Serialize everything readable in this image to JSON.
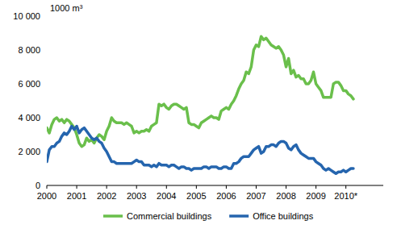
{
  "chart_data": {
    "type": "line",
    "ylabel": "1000 m³",
    "x": [
      2000,
      2000.083,
      2000.167,
      2000.25,
      2000.333,
      2000.417,
      2000.5,
      2000.583,
      2000.667,
      2000.75,
      2000.833,
      2000.917,
      2001,
      2001.083,
      2001.167,
      2001.25,
      2001.333,
      2001.417,
      2001.5,
      2001.583,
      2001.667,
      2001.75,
      2001.833,
      2001.917,
      2002,
      2002.083,
      2002.167,
      2002.25,
      2002.333,
      2002.417,
      2002.5,
      2002.583,
      2002.667,
      2002.75,
      2002.833,
      2002.917,
      2003,
      2003.083,
      2003.167,
      2003.25,
      2003.333,
      2003.417,
      2003.5,
      2003.583,
      2003.667,
      2003.75,
      2003.833,
      2003.917,
      2004,
      2004.083,
      2004.167,
      2004.25,
      2004.333,
      2004.417,
      2004.5,
      2004.583,
      2004.667,
      2004.75,
      2004.833,
      2004.917,
      2005,
      2005.083,
      2005.167,
      2005.25,
      2005.333,
      2005.417,
      2005.5,
      2005.583,
      2005.667,
      2005.75,
      2005.833,
      2005.917,
      2006,
      2006.083,
      2006.167,
      2006.25,
      2006.333,
      2006.417,
      2006.5,
      2006.583,
      2006.667,
      2006.75,
      2006.833,
      2006.917,
      2007,
      2007.083,
      2007.167,
      2007.25,
      2007.333,
      2007.417,
      2007.5,
      2007.583,
      2007.667,
      2007.75,
      2007.833,
      2007.917,
      2008,
      2008.083,
      2008.167,
      2008.25,
      2008.333,
      2008.417,
      2008.5,
      2008.583,
      2008.667,
      2008.75,
      2008.833,
      2008.917,
      2009,
      2009.083,
      2009.167,
      2009.25,
      2009.333,
      2009.417,
      2009.5,
      2009.583,
      2009.667,
      2009.75,
      2009.833,
      2009.917,
      2010,
      2010.083,
      2010.167,
      2010.25
    ],
    "series": [
      {
        "name": "Commercial buildings",
        "color": "#6abf4b",
        "values": [
          3400,
          3100,
          3600,
          3900,
          4000,
          3800,
          3900,
          3700,
          3900,
          3800,
          3600,
          3400,
          3000,
          2500,
          2300,
          2400,
          2800,
          2600,
          2700,
          2500,
          2800,
          3000,
          2900,
          2700,
          3200,
          3500,
          4000,
          3800,
          3700,
          3700,
          3700,
          3600,
          3700,
          3600,
          3500,
          3100,
          3200,
          3100,
          3200,
          3200,
          3300,
          3200,
          3500,
          3600,
          3700,
          4800,
          4700,
          4800,
          4600,
          4500,
          4700,
          4800,
          4800,
          4700,
          4600,
          4500,
          4600,
          3700,
          3600,
          3600,
          3500,
          3400,
          3700,
          3800,
          3900,
          4000,
          4100,
          4000,
          4000,
          3900,
          4400,
          4500,
          4600,
          4500,
          4800,
          5000,
          5300,
          5700,
          6000,
          6200,
          6700,
          6600,
          7000,
          8000,
          8300,
          8200,
          8800,
          8600,
          8700,
          8500,
          8300,
          8200,
          8100,
          8200,
          8000,
          7700,
          7000,
          7500,
          6600,
          6800,
          6400,
          6500,
          6300,
          6300,
          6000,
          6000,
          6200,
          6700,
          6000,
          5800,
          5600,
          5200,
          5200,
          5200,
          5200,
          6000,
          6100,
          6100,
          5900,
          5600,
          5600,
          5400,
          5300,
          5100
        ]
      },
      {
        "name": "Office buildings",
        "color": "#2565ae",
        "values": [
          1400,
          2100,
          2300,
          2300,
          2500,
          2600,
          2900,
          3100,
          3000,
          3200,
          3500,
          3300,
          3500,
          3100,
          3300,
          3400,
          3200,
          3000,
          2800,
          2700,
          2800,
          2600,
          2500,
          2200,
          2000,
          1700,
          1400,
          1400,
          1300,
          1300,
          1300,
          1300,
          1300,
          1300,
          1300,
          1400,
          1500,
          1400,
          1400,
          1200,
          1200,
          1200,
          1100,
          1200,
          1100,
          1300,
          1200,
          1200,
          1200,
          1100,
          1200,
          1200,
          1100,
          1000,
          1100,
          1100,
          1000,
          1000,
          900,
          1000,
          1000,
          1000,
          1000,
          1100,
          1100,
          1000,
          1100,
          1100,
          1100,
          1000,
          1000,
          1100,
          1100,
          1000,
          1000,
          1300,
          1300,
          1400,
          1600,
          1700,
          1700,
          1700,
          1900,
          2100,
          2200,
          2300,
          1900,
          2000,
          2300,
          2300,
          2400,
          2400,
          2300,
          2500,
          2600,
          2600,
          2500,
          2200,
          2100,
          2300,
          2400,
          2100,
          1900,
          1800,
          1700,
          1600,
          1600,
          1600,
          1400,
          1300,
          1200,
          1000,
          900,
          1000,
          900,
          800,
          700,
          800,
          800,
          900,
          800,
          900,
          1000,
          1000
        ]
      }
    ],
    "xlim": [
      2000,
      2011.25
    ],
    "xticks": [
      2000,
      2001,
      2002,
      2003,
      2004,
      2005,
      2006,
      2007,
      2008,
      2009,
      {
        "value": 2010,
        "label": "2010*"
      }
    ],
    "ylim": [
      0,
      10000
    ],
    "yticks": [
      0,
      {
        "value": 2000,
        "label": "2 000"
      },
      {
        "value": 4000,
        "label": "4 000"
      },
      {
        "value": 6000,
        "label": "6 000"
      },
      {
        "value": 8000,
        "label": "8 000"
      },
      {
        "value": 10000,
        "label": "10 000"
      }
    ],
    "grid": false,
    "legend": "bottom"
  }
}
